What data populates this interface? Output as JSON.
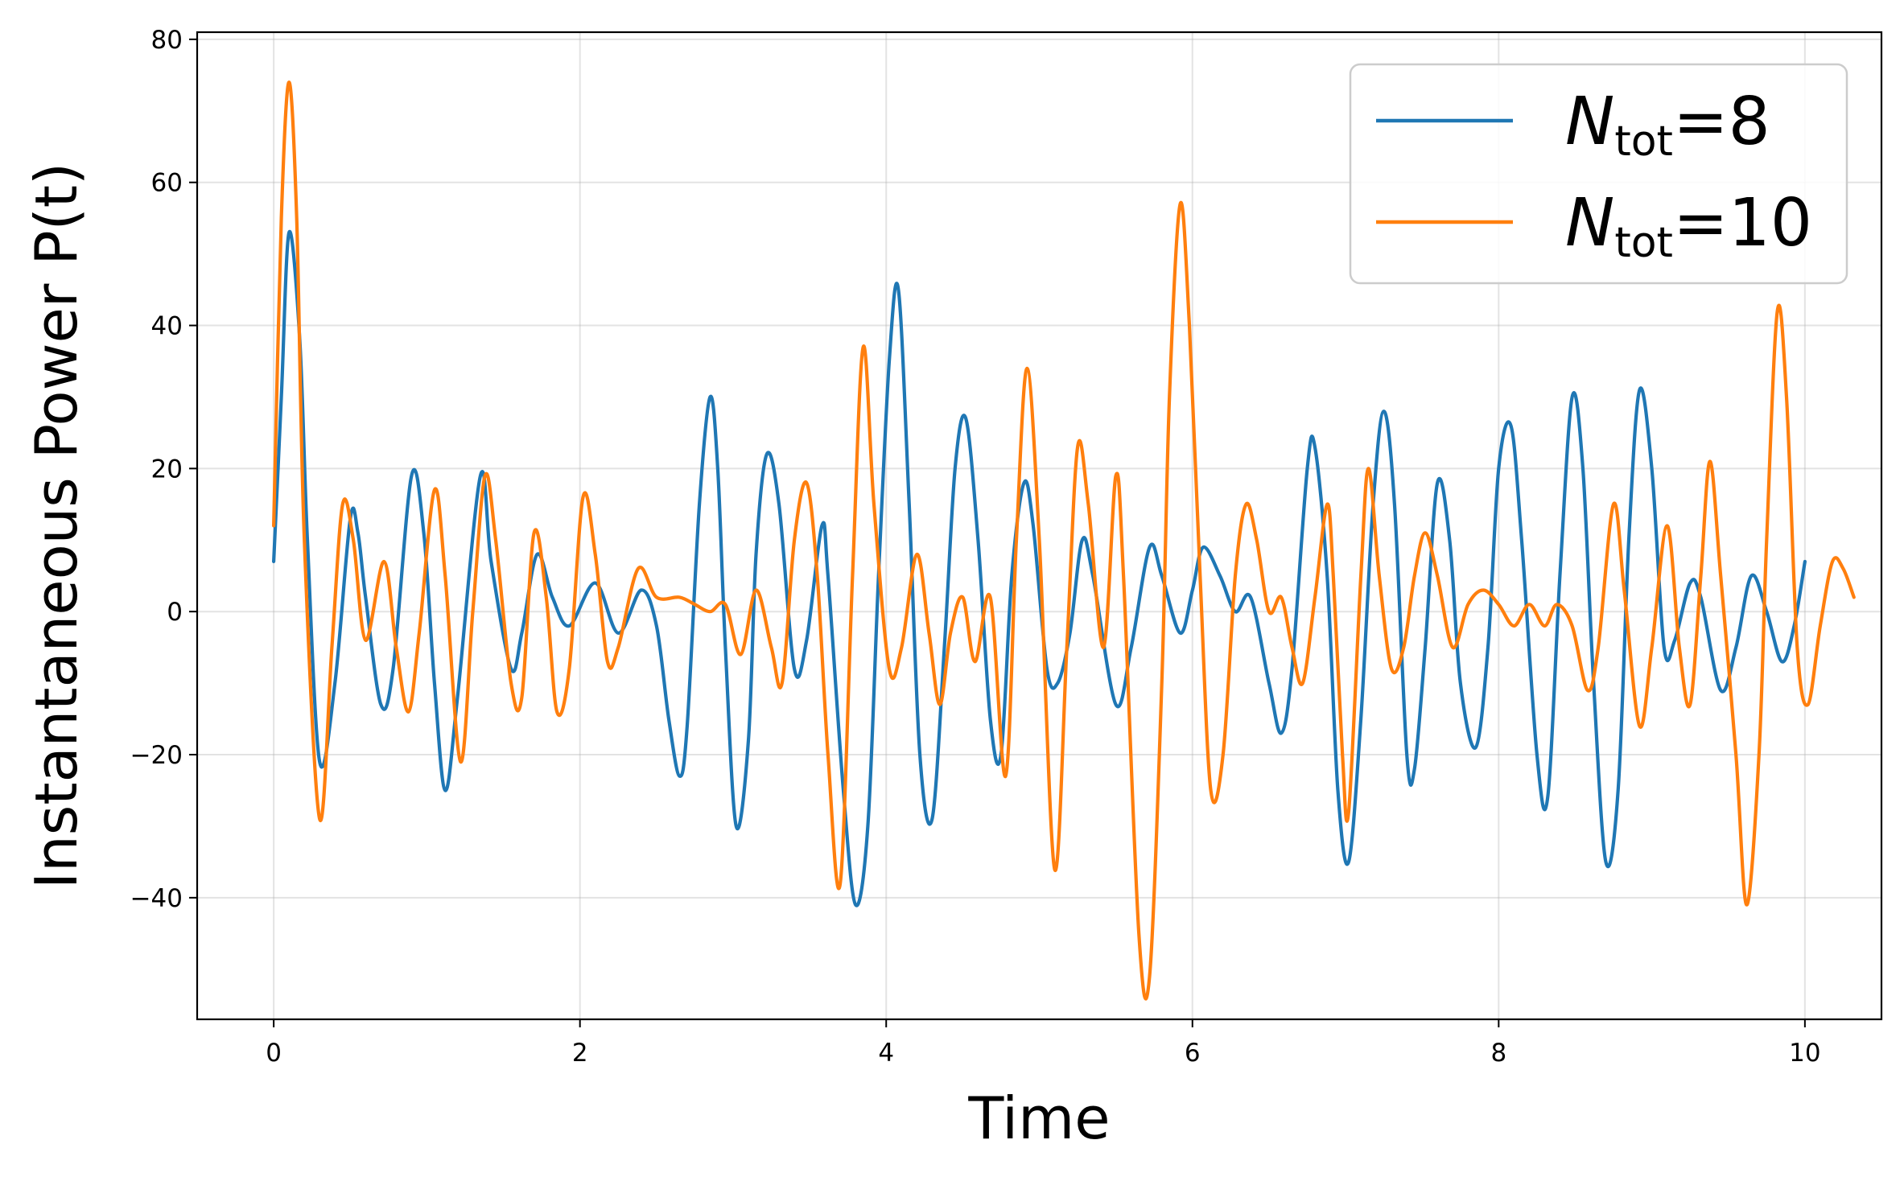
{
  "chart_data": {
    "type": "line",
    "title": "",
    "xlabel": "Time",
    "ylabel": "Instantaneous Power P(t)",
    "xlim": [
      -0.5,
      10.5
    ],
    "ylim": [
      -57,
      81
    ],
    "xticks": [
      0,
      2,
      4,
      6,
      8,
      10
    ],
    "yticks": [
      -40,
      -20,
      0,
      20,
      40,
      60,
      80
    ],
    "xtick_labels": [
      "0",
      "2",
      "4",
      "6",
      "8",
      "10"
    ],
    "ytick_labels": [
      "−40",
      "−20",
      "0",
      "20",
      "40",
      "60",
      "80"
    ],
    "grid": true,
    "legend_position": "upper-right",
    "series": [
      {
        "name": "N_tot=8",
        "legend_base": "N",
        "legend_sub": "tot",
        "legend_suffix": "=8",
        "color": "#1f77b4",
        "points": [
          [
            0.0,
            7
          ],
          [
            0.05,
            30
          ],
          [
            0.1,
            53
          ],
          [
            0.17,
            38
          ],
          [
            0.22,
            10
          ],
          [
            0.3,
            -21
          ],
          [
            0.4,
            -10
          ],
          [
            0.5,
            13
          ],
          [
            0.55,
            11
          ],
          [
            0.6,
            2
          ],
          [
            0.7,
            -13
          ],
          [
            0.78,
            -8
          ],
          [
            0.9,
            19
          ],
          [
            0.98,
            11
          ],
          [
            1.05,
            -10
          ],
          [
            1.12,
            -25
          ],
          [
            1.2,
            -12
          ],
          [
            1.35,
            19
          ],
          [
            1.42,
            7
          ],
          [
            1.55,
            -8
          ],
          [
            1.62,
            -3
          ],
          [
            1.72,
            8
          ],
          [
            1.82,
            2
          ],
          [
            1.93,
            -2
          ],
          [
            2.1,
            4
          ],
          [
            2.25,
            -3
          ],
          [
            2.4,
            3
          ],
          [
            2.5,
            -2
          ],
          [
            2.58,
            -15
          ],
          [
            2.65,
            -23
          ],
          [
            2.7,
            -16
          ],
          [
            2.78,
            15
          ],
          [
            2.85,
            30
          ],
          [
            2.9,
            20
          ],
          [
            2.95,
            -5
          ],
          [
            3.02,
            -30
          ],
          [
            3.1,
            -18
          ],
          [
            3.15,
            8
          ],
          [
            3.22,
            22
          ],
          [
            3.3,
            15
          ],
          [
            3.4,
            -8
          ],
          [
            3.48,
            -4
          ],
          [
            3.58,
            12
          ],
          [
            3.62,
            5
          ],
          [
            3.72,
            -25
          ],
          [
            3.8,
            -41
          ],
          [
            3.88,
            -30
          ],
          [
            3.95,
            5
          ],
          [
            4.02,
            35
          ],
          [
            4.08,
            45
          ],
          [
            4.15,
            15
          ],
          [
            4.22,
            -20
          ],
          [
            4.3,
            -29
          ],
          [
            4.38,
            -5
          ],
          [
            4.45,
            20
          ],
          [
            4.52,
            27
          ],
          [
            4.6,
            10
          ],
          [
            4.68,
            -15
          ],
          [
            4.75,
            -20
          ],
          [
            4.82,
            5
          ],
          [
            4.9,
            18
          ],
          [
            4.96,
            12
          ],
          [
            5.05,
            -8
          ],
          [
            5.12,
            -10
          ],
          [
            5.2,
            -3
          ],
          [
            5.28,
            10
          ],
          [
            5.35,
            5
          ],
          [
            5.5,
            -13
          ],
          [
            5.6,
            -5
          ],
          [
            5.72,
            9
          ],
          [
            5.8,
            5
          ],
          [
            5.92,
            -3
          ],
          [
            6.0,
            3
          ],
          [
            6.07,
            9
          ],
          [
            6.18,
            5
          ],
          [
            6.28,
            0
          ],
          [
            6.38,
            2
          ],
          [
            6.5,
            -10
          ],
          [
            6.58,
            -17
          ],
          [
            6.65,
            -8
          ],
          [
            6.75,
            20
          ],
          [
            6.8,
            23
          ],
          [
            6.88,
            5
          ],
          [
            6.95,
            -25
          ],
          [
            7.02,
            -35
          ],
          [
            7.1,
            -15
          ],
          [
            7.18,
            15
          ],
          [
            7.25,
            28
          ],
          [
            7.32,
            15
          ],
          [
            7.4,
            -20
          ],
          [
            7.45,
            -22
          ],
          [
            7.52,
            -5
          ],
          [
            7.6,
            18
          ],
          [
            7.68,
            10
          ],
          [
            7.75,
            -10
          ],
          [
            7.85,
            -19
          ],
          [
            7.93,
            -5
          ],
          [
            8.0,
            20
          ],
          [
            8.08,
            26
          ],
          [
            8.15,
            10
          ],
          [
            8.25,
            -20
          ],
          [
            8.32,
            -26
          ],
          [
            8.4,
            5
          ],
          [
            8.48,
            30
          ],
          [
            8.55,
            20
          ],
          [
            8.62,
            -10
          ],
          [
            8.7,
            -35
          ],
          [
            8.78,
            -25
          ],
          [
            8.85,
            10
          ],
          [
            8.92,
            31
          ],
          [
            9.0,
            20
          ],
          [
            9.08,
            -5
          ],
          [
            9.15,
            -4
          ],
          [
            9.25,
            4
          ],
          [
            9.32,
            2
          ],
          [
            9.45,
            -11
          ],
          [
            9.55,
            -5
          ],
          [
            9.65,
            5
          ],
          [
            9.75,
            0
          ],
          [
            9.85,
            -7
          ],
          [
            9.93,
            -2
          ],
          [
            10.0,
            7
          ]
        ]
      },
      {
        "name": "N_tot=10",
        "legend_base": "N",
        "legend_sub": "tot",
        "legend_suffix": "=10",
        "color": "#ff7f0e",
        "points": [
          [
            0.0,
            12
          ],
          [
            0.05,
            55
          ],
          [
            0.1,
            74
          ],
          [
            0.15,
            55
          ],
          [
            0.2,
            10
          ],
          [
            0.3,
            -29
          ],
          [
            0.38,
            -5
          ],
          [
            0.45,
            15
          ],
          [
            0.52,
            10
          ],
          [
            0.6,
            -4
          ],
          [
            0.72,
            7
          ],
          [
            0.8,
            -5
          ],
          [
            0.88,
            -14
          ],
          [
            0.95,
            -3
          ],
          [
            1.05,
            17
          ],
          [
            1.12,
            5
          ],
          [
            1.22,
            -21
          ],
          [
            1.3,
            0
          ],
          [
            1.38,
            19
          ],
          [
            1.45,
            10
          ],
          [
            1.55,
            -10
          ],
          [
            1.62,
            -12
          ],
          [
            1.7,
            11
          ],
          [
            1.78,
            2
          ],
          [
            1.85,
            -14
          ],
          [
            1.93,
            -8
          ],
          [
            2.02,
            16
          ],
          [
            2.1,
            8
          ],
          [
            2.18,
            -7
          ],
          [
            2.25,
            -5
          ],
          [
            2.38,
            6
          ],
          [
            2.5,
            2
          ],
          [
            2.65,
            2
          ],
          [
            2.75,
            1
          ],
          [
            2.85,
            0
          ],
          [
            2.95,
            1
          ],
          [
            3.05,
            -6
          ],
          [
            3.15,
            3
          ],
          [
            3.25,
            -5
          ],
          [
            3.32,
            -10
          ],
          [
            3.4,
            10
          ],
          [
            3.48,
            18
          ],
          [
            3.55,
            5
          ],
          [
            3.62,
            -20
          ],
          [
            3.7,
            -38
          ],
          [
            3.78,
            5
          ],
          [
            3.85,
            37
          ],
          [
            3.92,
            15
          ],
          [
            4.02,
            -8
          ],
          [
            4.1,
            -5
          ],
          [
            4.2,
            8
          ],
          [
            4.28,
            -3
          ],
          [
            4.35,
            -13
          ],
          [
            4.42,
            -3
          ],
          [
            4.5,
            2
          ],
          [
            4.58,
            -7
          ],
          [
            4.68,
            2
          ],
          [
            4.78,
            -23
          ],
          [
            4.85,
            10
          ],
          [
            4.92,
            34
          ],
          [
            5.0,
            10
          ],
          [
            5.1,
            -36
          ],
          [
            5.18,
            -5
          ],
          [
            5.25,
            23
          ],
          [
            5.32,
            15
          ],
          [
            5.42,
            -5
          ],
          [
            5.5,
            19
          ],
          [
            5.55,
            5
          ],
          [
            5.65,
            -45
          ],
          [
            5.72,
            -51
          ],
          [
            5.8,
            -10
          ],
          [
            5.85,
            30
          ],
          [
            5.92,
            57
          ],
          [
            5.98,
            40
          ],
          [
            6.05,
            5
          ],
          [
            6.12,
            -25
          ],
          [
            6.2,
            -20
          ],
          [
            6.28,
            5
          ],
          [
            6.35,
            15
          ],
          [
            6.42,
            10
          ],
          [
            6.5,
            0
          ],
          [
            6.58,
            2
          ],
          [
            6.65,
            -5
          ],
          [
            6.72,
            -10
          ],
          [
            6.8,
            2
          ],
          [
            6.88,
            15
          ],
          [
            6.92,
            5
          ],
          [
            6.98,
            -20
          ],
          [
            7.02,
            -28
          ],
          [
            7.1,
            5
          ],
          [
            7.15,
            20
          ],
          [
            7.22,
            5
          ],
          [
            7.3,
            -8
          ],
          [
            7.38,
            -5
          ],
          [
            7.45,
            5
          ],
          [
            7.52,
            11
          ],
          [
            7.6,
            5
          ],
          [
            7.7,
            -5
          ],
          [
            7.8,
            1
          ],
          [
            7.9,
            3
          ],
          [
            8.0,
            1
          ],
          [
            8.1,
            -2
          ],
          [
            8.2,
            1
          ],
          [
            8.3,
            -2
          ],
          [
            8.38,
            1
          ],
          [
            8.48,
            -2
          ],
          [
            8.58,
            -11
          ],
          [
            8.65,
            -5
          ],
          [
            8.75,
            15
          ],
          [
            8.82,
            3
          ],
          [
            8.92,
            -16
          ],
          [
            9.0,
            -5
          ],
          [
            9.1,
            12
          ],
          [
            9.18,
            -5
          ],
          [
            9.25,
            -13
          ],
          [
            9.32,
            5
          ],
          [
            9.38,
            21
          ],
          [
            9.45,
            5
          ],
          [
            9.55,
            -20
          ],
          [
            9.62,
            -41
          ],
          [
            9.7,
            -20
          ],
          [
            9.75,
            10
          ],
          [
            9.82,
            42
          ],
          [
            9.88,
            30
          ],
          [
            9.95,
            -5
          ],
          [
            10.02,
            -13
          ],
          [
            10.1,
            -2
          ],
          [
            10.18,
            7
          ],
          [
            10.25,
            6
          ],
          [
            10.32,
            2
          ]
        ]
      }
    ]
  }
}
